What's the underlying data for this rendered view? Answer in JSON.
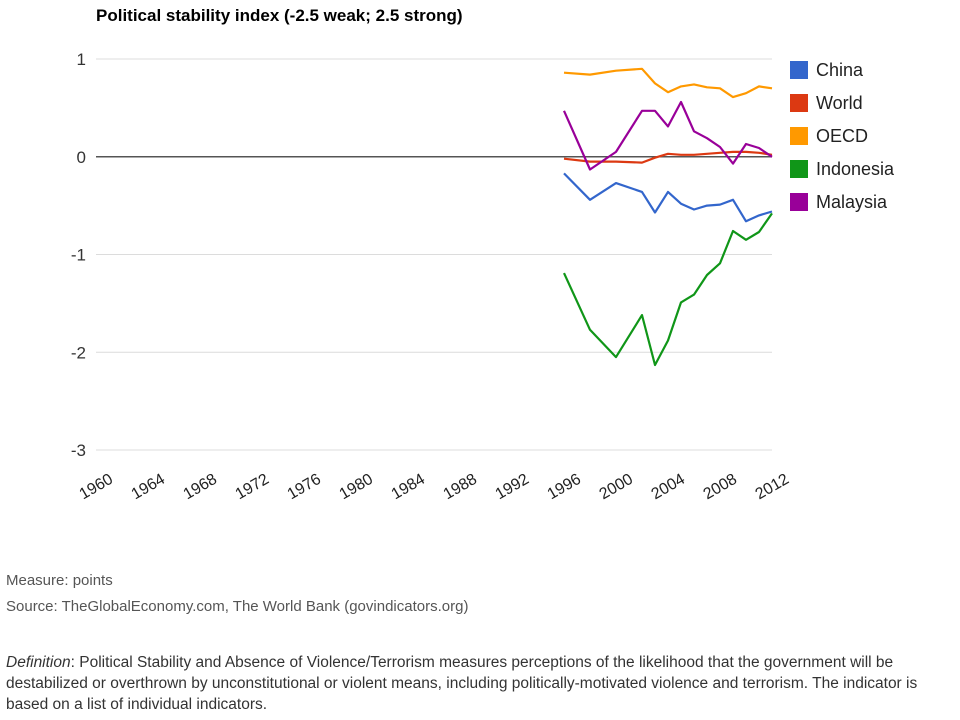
{
  "chart_data": {
    "type": "line",
    "title": "Political stability index (-2.5 weak; 2.5 strong)",
    "xlabel": "",
    "ylabel": "",
    "xlim": [
      1960,
      2012
    ],
    "ylim": [
      -3,
      1
    ],
    "yticks": [
      1,
      0,
      -1,
      -2,
      -3
    ],
    "ytick_labels": [
      "1",
      "0",
      "-1",
      "-2",
      "-3"
    ],
    "xticks": [
      1960,
      1964,
      1968,
      1972,
      1976,
      1980,
      1984,
      1988,
      1992,
      1996,
      2000,
      2004,
      2008,
      2012
    ],
    "xtick_labels": [
      "1960",
      "1964",
      "1968",
      "1972",
      "1976",
      "1980",
      "1984",
      "1988",
      "1992",
      "1996",
      "2000",
      "2004",
      "2008",
      "2012"
    ],
    "grid": true,
    "legend_position": "right",
    "x": [
      1996,
      1998,
      2000,
      2002,
      2003,
      2004,
      2005,
      2006,
      2007,
      2008,
      2009,
      2010,
      2011,
      2012
    ],
    "series": [
      {
        "name": "China",
        "color": "#3366cc",
        "values": [
          -0.17,
          -0.44,
          -0.27,
          -0.36,
          -0.57,
          -0.36,
          -0.48,
          -0.54,
          -0.5,
          -0.49,
          -0.44,
          -0.66,
          -0.6,
          -0.56
        ]
      },
      {
        "name": "World",
        "color": "#dc3912",
        "values": [
          -0.02,
          -0.05,
          -0.05,
          -0.06,
          -0.01,
          0.03,
          0.02,
          0.02,
          0.03,
          0.04,
          0.05,
          0.05,
          0.04,
          0.02
        ]
      },
      {
        "name": "OECD",
        "color": "#ff9900",
        "values": [
          0.86,
          0.84,
          0.88,
          0.9,
          0.75,
          0.66,
          0.72,
          0.74,
          0.71,
          0.7,
          0.61,
          0.65,
          0.72,
          0.7
        ]
      },
      {
        "name": "Indonesia",
        "color": "#109618",
        "values": [
          -1.19,
          -1.77,
          -2.05,
          -1.62,
          -2.13,
          -1.88,
          -1.49,
          -1.41,
          -1.21,
          -1.09,
          -0.76,
          -0.85,
          -0.77,
          -0.58
        ]
      },
      {
        "name": "Malaysia",
        "color": "#990099",
        "values": [
          0.47,
          -0.13,
          0.05,
          0.47,
          0.47,
          0.31,
          0.56,
          0.26,
          0.19,
          0.1,
          -0.07,
          0.13,
          0.09,
          0.0
        ]
      }
    ]
  },
  "footer": {
    "measure": "Measure: points",
    "source": "Source: TheGlobalEconomy.com, The World Bank (govindicators.org)",
    "definition_label": "Definition",
    "definition_text": ": Political Stability and Absence of Violence/Terrorism measures perceptions of the likelihood that the government will be destabilized or overthrown by unconstitutional or violent means, including politically-motivated violence and terrorism. The indicator is based on a list of individual indicators."
  }
}
